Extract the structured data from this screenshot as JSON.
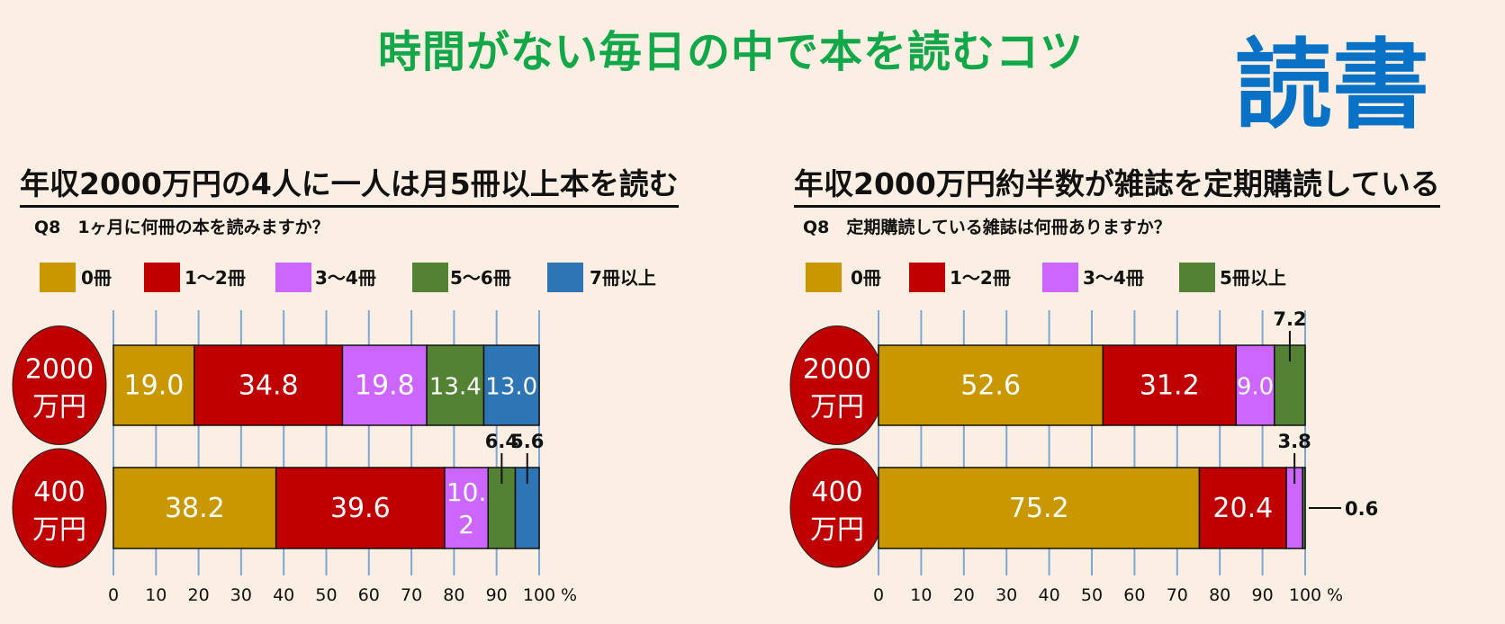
{
  "header": {
    "title": "時間がない毎日の中で本を読むコツ",
    "big_title": "読書"
  },
  "chart_data": [
    {
      "type": "bar",
      "stacked": true,
      "orientation": "horizontal",
      "title": "年収2000万円の4人に一人は月5冊以上本を読む",
      "question": "Q8　1ヶ月に何冊の本を読みますか？",
      "categories": [
        "2000万円",
        "400万円"
      ],
      "category_lines": [
        [
          "2000",
          "万円"
        ],
        [
          "400",
          "万円"
        ]
      ],
      "series": [
        {
          "name": "0冊",
          "color": "#c99700",
          "values": [
            19.0,
            38.2
          ]
        },
        {
          "name": "1～2冊",
          "color": "#c00000",
          "values": [
            34.8,
            39.6
          ]
        },
        {
          "name": "3～4冊",
          "color": "#cc66ff",
          "values": [
            19.8,
            10.2
          ]
        },
        {
          "name": "5～6冊",
          "color": "#548235",
          "values": [
            13.4,
            6.4
          ]
        },
        {
          "name": "7冊以上",
          "color": "#2e75b6",
          "values": [
            13.0,
            5.6
          ]
        }
      ],
      "labels": [
        [
          "19.0",
          "34.8",
          "19.8",
          "13.4",
          "13.0"
        ],
        [
          "38.2",
          "39.6",
          "10.\n2",
          "6.4",
          "5.6"
        ]
      ],
      "xlim": [
        0,
        100
      ],
      "xticks": [
        "0",
        "10",
        "20",
        "30",
        "40",
        "50",
        "60",
        "70",
        "80",
        "90",
        "100"
      ],
      "xunit": "%",
      "grid": true,
      "legend": "top"
    },
    {
      "type": "bar",
      "stacked": true,
      "orientation": "horizontal",
      "title": "年収2000万円約半数が雑誌を定期購読している",
      "question": "Q8　定期購読している雑誌は何冊ありますか？",
      "categories": [
        "2000万円",
        "400万円"
      ],
      "category_lines": [
        [
          "2000",
          "万円"
        ],
        [
          "400",
          "万円"
        ]
      ],
      "series": [
        {
          "name": "0冊",
          "color": "#c99700",
          "values": [
            52.6,
            75.2
          ]
        },
        {
          "name": "1～2冊",
          "color": "#c00000",
          "values": [
            31.2,
            20.4
          ]
        },
        {
          "name": "3～4冊",
          "color": "#cc66ff",
          "values": [
            9.0,
            3.8
          ]
        },
        {
          "name": "5冊以上",
          "color": "#548235",
          "values": [
            7.2,
            0.6
          ]
        }
      ],
      "labels": [
        [
          "52.6",
          "31.2",
          "9.0",
          "7.2"
        ],
        [
          "75.2",
          "20.4",
          "3.8",
          "0.6"
        ]
      ],
      "xlim": [
        0,
        100
      ],
      "xticks": [
        "0",
        "10",
        "20",
        "30",
        "40",
        "50",
        "60",
        "70",
        "80",
        "90",
        "100"
      ],
      "xunit": "%",
      "grid": true,
      "legend": "top"
    }
  ]
}
